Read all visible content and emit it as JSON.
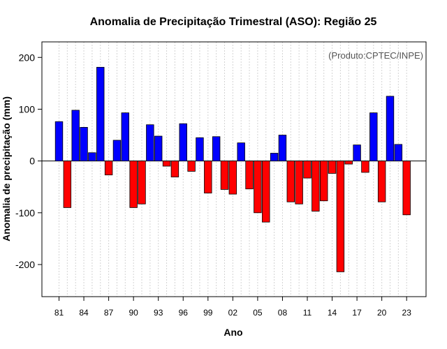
{
  "chart_data": {
    "type": "bar",
    "title": "Anomalia de Precipitação Trimestral (ASO): Região 25",
    "xlabel": "Ano",
    "ylabel": "Anomalia de precipitação (mm)",
    "source_note": "(Produto:CPTEC/INPE)",
    "ylim": [
      -262,
      230
    ],
    "yticks": [
      -200,
      -100,
      0,
      100,
      200
    ],
    "ytick_labels": [
      "-200",
      "-100",
      "0",
      "100",
      "200"
    ],
    "xtick_years": [
      1981,
      1984,
      1987,
      1990,
      1993,
      1996,
      1999,
      2002,
      2005,
      2008,
      2011,
      2014,
      2017,
      2020,
      2023
    ],
    "xtick_labels": [
      "81",
      "84",
      "87",
      "90",
      "93",
      "96",
      "99",
      "02",
      "05",
      "08",
      "11",
      "14",
      "17",
      "20",
      "23"
    ],
    "colors": {
      "positive": "#0000ff",
      "negative": "#ff0000",
      "bar_edge": "#000000",
      "grid": "#d3d3d3"
    },
    "years": [
      1981,
      1982,
      1983,
      1984,
      1985,
      1986,
      1987,
      1988,
      1989,
      1990,
      1991,
      1992,
      1993,
      1994,
      1995,
      1996,
      1997,
      1998,
      1999,
      2000,
      2001,
      2002,
      2003,
      2004,
      2005,
      2006,
      2007,
      2008,
      2009,
      2010,
      2011,
      2012,
      2013,
      2014,
      2015,
      2016,
      2017,
      2018,
      2019,
      2020,
      2021,
      2022,
      2023
    ],
    "values": [
      76,
      -90,
      98,
      65,
      16,
      181,
      -27,
      40,
      93,
      -90,
      -83,
      70,
      48,
      -10,
      -31,
      72,
      -20,
      45,
      -62,
      47,
      -55,
      -64,
      35,
      -54,
      -100,
      -118,
      15,
      50,
      -79,
      -83,
      -33,
      -97,
      -77,
      -24,
      -214,
      -6,
      31,
      -22,
      93,
      -79,
      125,
      32,
      -104
    ]
  }
}
